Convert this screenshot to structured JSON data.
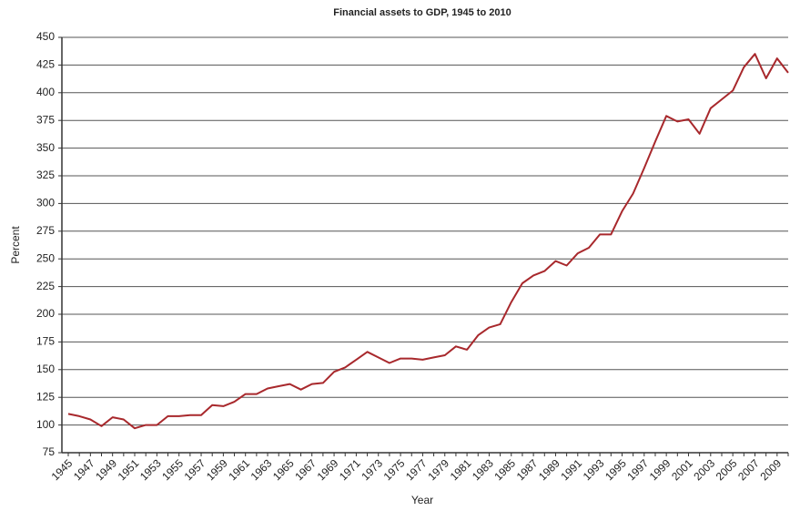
{
  "chart_data": {
    "type": "line",
    "title": "Financial assets to GDP, 1945 to 2010",
    "x_label": "Year",
    "y_label": "Percent",
    "categories": [
      "1945",
      null,
      "1947",
      null,
      "1949",
      null,
      "1951",
      null,
      "1953",
      null,
      "1955",
      null,
      "1957",
      null,
      "1959",
      null,
      "1961",
      null,
      "1963",
      null,
      "1965",
      null,
      "1967",
      null,
      "1969",
      null,
      "1971",
      null,
      "1973",
      null,
      "1975",
      null,
      "1977",
      null,
      "1979",
      null,
      "1981",
      null,
      "1983",
      null,
      "1985",
      null,
      "1987",
      null,
      "1989",
      null,
      "1991",
      null,
      "1993",
      null,
      "1995",
      null,
      "1997",
      null,
      "1999",
      null,
      "2001",
      null,
      "2003",
      null,
      "2005",
      null,
      "2007",
      null,
      "2009",
      null
    ],
    "series": [
      {
        "name": "Financial assets to GDP",
        "color": "#a8282c",
        "values": [
          110,
          108,
          105,
          99,
          107,
          105,
          97,
          100,
          100,
          108,
          108,
          109,
          109,
          118,
          117,
          121,
          128,
          128,
          133,
          135,
          137,
          132,
          137,
          138,
          148,
          152,
          159,
          166,
          161,
          156,
          160,
          160,
          159,
          161,
          163,
          171,
          168,
          181,
          188,
          191,
          211,
          228,
          235,
          239,
          248,
          244,
          255,
          260,
          272,
          272,
          293,
          309,
          332,
          356,
          379,
          374,
          376,
          363,
          386,
          394,
          402,
          423,
          435,
          413,
          431,
          418
        ]
      }
    ],
    "ylim": [
      75,
      450
    ],
    "yticks": [
      75,
      100,
      125,
      150,
      175,
      200,
      225,
      250,
      275,
      300,
      325,
      350,
      375,
      400,
      425,
      450
    ],
    "grid": true
  }
}
